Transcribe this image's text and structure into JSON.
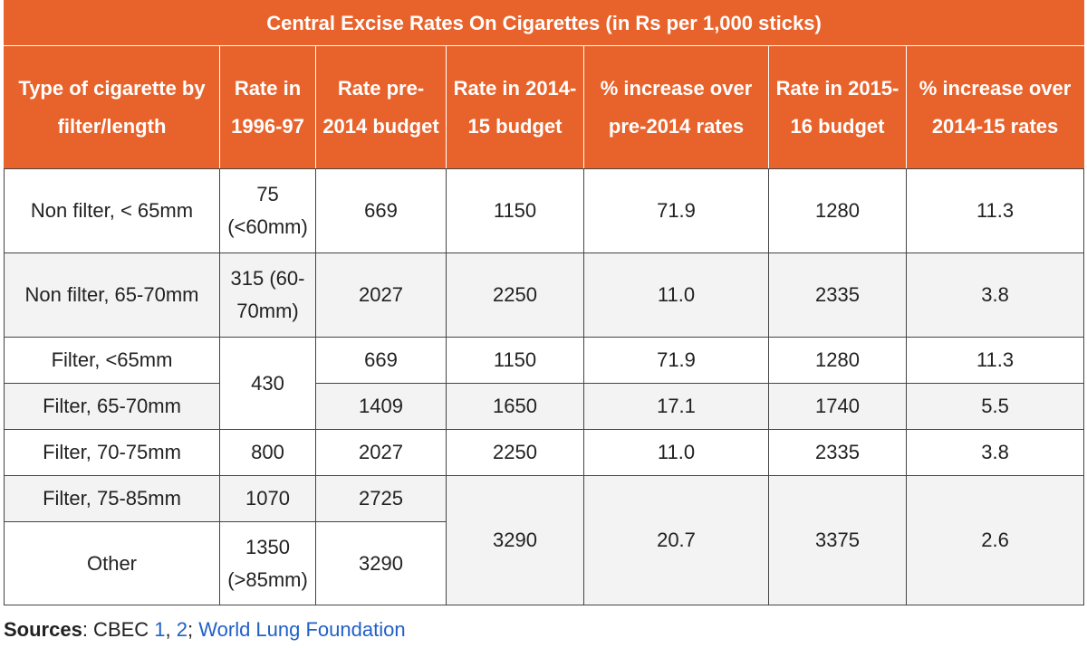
{
  "table": {
    "title": "Central Excise Rates On Cigarettes (in Rs per 1,000 sticks)",
    "header": [
      "Type of cigarette by filter/length",
      "Rate in 1996-97",
      "Rate pre-2014 budget",
      "Rate in 2014-15 budget",
      "% increase over pre-2014 rates",
      "Rate in 2015-16 budget",
      "% increase over 2014-15 rates"
    ],
    "rows": [
      [
        "Non filter, < 65mm",
        "75 (<60mm)",
        "669",
        "1150",
        "71.9",
        "1280",
        "11.3"
      ],
      [
        "Non filter, 65-70mm",
        "315 (60-70mm)",
        "2027",
        "2250",
        "11.0",
        "2335",
        "3.8"
      ],
      [
        "Filter, <65mm",
        "430",
        "669",
        "1150",
        "71.9",
        "1280",
        "11.3"
      ],
      [
        "Filter, 65-70mm",
        "1409",
        "1650",
        "17.1",
        "1740",
        "5.5"
      ],
      [
        "Filter, 70-75mm",
        "800",
        "2027",
        "2250",
        "11.0",
        "2335",
        "3.8"
      ],
      [
        "Filter, 75-85mm",
        "1070",
        "2725",
        "3290",
        "20.7",
        "3375",
        "2.6"
      ],
      [
        "Other",
        "1350 (>85mm)",
        "3290"
      ]
    ]
  },
  "source": {
    "label": "Sources",
    "text": ": CBEC ",
    "links": [
      "1",
      "2",
      "World Lung Foundation"
    ],
    "separators": [
      ", ",
      "; "
    ]
  }
}
